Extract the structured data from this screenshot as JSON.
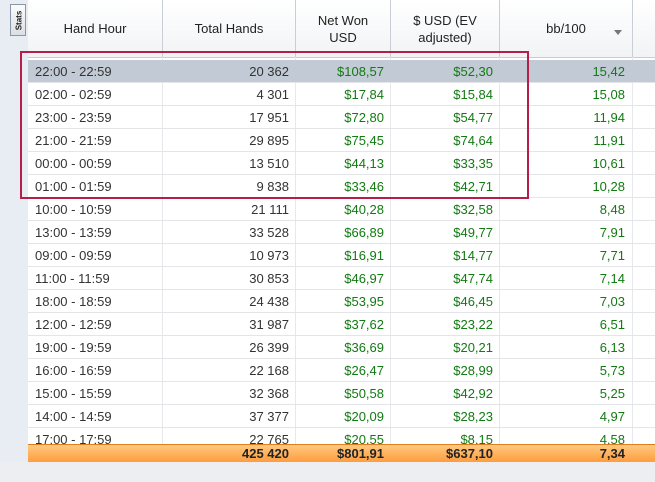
{
  "sidebar": {
    "stats_tab_label": "Stats"
  },
  "columns": [
    {
      "key": "hour",
      "label": "Hand Hour"
    },
    {
      "key": "hands",
      "label": "Total Hands"
    },
    {
      "key": "net",
      "label": "Net Won\nUSD"
    },
    {
      "key": "usd",
      "label": "$ USD (EV\nadjusted)"
    },
    {
      "key": "bb",
      "label": "bb/100"
    }
  ],
  "sort": {
    "column": "bb/100",
    "direction": "descending"
  },
  "rows": [
    {
      "hour": "22:00 - 22:59",
      "hands": "20 362",
      "net": "$108,57",
      "usd": "$52,30",
      "bb": "15,42",
      "selected": true
    },
    {
      "hour": "02:00 - 02:59",
      "hands": "4 301",
      "net": "$17,84",
      "usd": "$15,84",
      "bb": "15,08"
    },
    {
      "hour": "23:00 - 23:59",
      "hands": "17 951",
      "net": "$72,80",
      "usd": "$54,77",
      "bb": "11,94"
    },
    {
      "hour": "21:00 - 21:59",
      "hands": "29 895",
      "net": "$75,45",
      "usd": "$74,64",
      "bb": "11,91"
    },
    {
      "hour": "00:00 - 00:59",
      "hands": "13 510",
      "net": "$44,13",
      "usd": "$33,35",
      "bb": "10,61"
    },
    {
      "hour": "01:00 - 01:59",
      "hands": "9 838",
      "net": "$33,46",
      "usd": "$42,71",
      "bb": "10,28"
    },
    {
      "hour": "10:00 - 10:59",
      "hands": "21 111",
      "net": "$40,28",
      "usd": "$32,58",
      "bb": "8,48"
    },
    {
      "hour": "13:00 - 13:59",
      "hands": "33 528",
      "net": "$66,89",
      "usd": "$49,77",
      "bb": "7,91"
    },
    {
      "hour": "09:00 - 09:59",
      "hands": "10 973",
      "net": "$16,91",
      "usd": "$14,77",
      "bb": "7,71"
    },
    {
      "hour": "11:00 - 11:59",
      "hands": "30 853",
      "net": "$46,97",
      "usd": "$47,74",
      "bb": "7,14"
    },
    {
      "hour": "18:00 - 18:59",
      "hands": "24 438",
      "net": "$53,95",
      "usd": "$46,45",
      "bb": "7,03"
    },
    {
      "hour": "12:00 - 12:59",
      "hands": "31 987",
      "net": "$37,62",
      "usd": "$23,22",
      "bb": "6,51"
    },
    {
      "hour": "19:00 - 19:59",
      "hands": "26 399",
      "net": "$36,69",
      "usd": "$20,21",
      "bb": "6,13"
    },
    {
      "hour": "16:00 - 16:59",
      "hands": "22 168",
      "net": "$26,47",
      "usd": "$28,99",
      "bb": "5,73"
    },
    {
      "hour": "15:00 - 15:59",
      "hands": "32 368",
      "net": "$50,58",
      "usd": "$42,92",
      "bb": "5,25"
    },
    {
      "hour": "14:00 - 14:59",
      "hands": "37 377",
      "net": "$20,09",
      "usd": "$28,23",
      "bb": "4,97"
    },
    {
      "hour": "17:00 - 17:59",
      "hands": "22 765",
      "net": "$20,55",
      "usd": "$8,15",
      "bb": "4,58"
    }
  ],
  "totals": {
    "hands": "425 420",
    "net": "$801,91",
    "usd": "$637,10",
    "bb": "7,34"
  },
  "colors": {
    "positive": "#117a11",
    "selected_row": "#c2cad6",
    "highlight": "#b51e48",
    "footer": "#ff9a3a"
  }
}
